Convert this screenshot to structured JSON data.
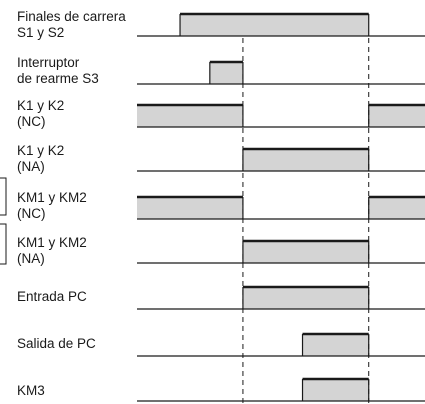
{
  "signals": [
    {
      "line1": "Finales de carrera",
      "line2": "S1 y S2",
      "active": [
        [
          1.3,
          7.0
        ]
      ]
    },
    {
      "line1": "Interruptor",
      "line2": "de rearme S3",
      "active": [
        [
          2.2,
          3.2
        ]
      ]
    },
    {
      "line1": "K1 y K2",
      "line2": "(NC)",
      "active": [
        [
          0.0,
          3.2
        ],
        [
          7.0,
          8.7
        ]
      ]
    },
    {
      "line1": "K1 y K2",
      "line2": "(NA)",
      "active": [
        [
          3.2,
          7.0
        ]
      ]
    },
    {
      "line1": "KM1 y KM2",
      "line2": "(NC)",
      "active": [
        [
          0.0,
          3.2
        ],
        [
          7.0,
          8.7
        ]
      ]
    },
    {
      "line1": "KM1 y KM2",
      "line2": "(NA)",
      "active": [
        [
          3.2,
          7.0
        ]
      ]
    },
    {
      "line1": "Entrada PC",
      "line2": "",
      "active": [
        [
          3.2,
          7.0
        ]
      ]
    },
    {
      "line1": "Salida de PC",
      "line2": "",
      "active": [
        [
          5.0,
          7.0
        ]
      ]
    },
    {
      "line1": "KM3",
      "line2": "",
      "active": [
        [
          5.0,
          7.0
        ]
      ]
    }
  ],
  "markers": [
    3.2,
    7.0
  ],
  "time_span": [
    0,
    8.7
  ],
  "colors": {
    "line": "#1a1a1a",
    "fill": "#d4d4d4"
  }
}
